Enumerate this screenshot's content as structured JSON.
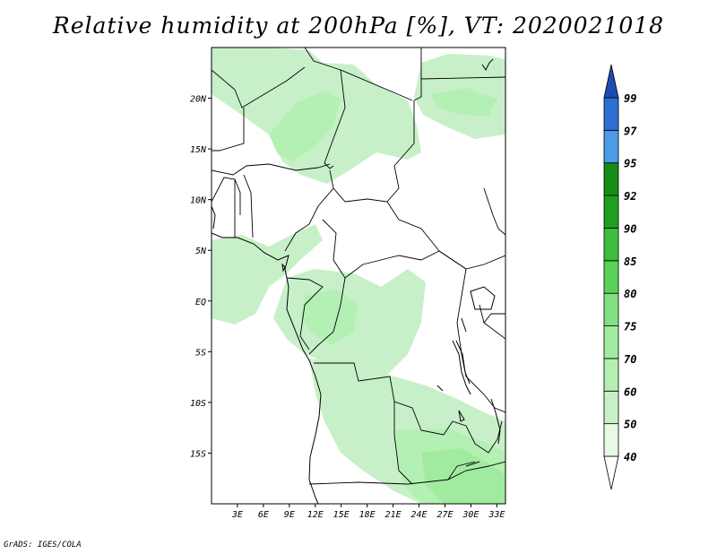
{
  "title": "Relative humidity at 200hPa [%], VT: 2020021018",
  "credit": "GrADS: IGES/COLA",
  "map": {
    "lon_range": [
      0,
      34
    ],
    "lat_range": [
      -20,
      25
    ],
    "lat_ticks": [
      {
        "value": 20,
        "label": "20N"
      },
      {
        "value": 15,
        "label": "15N"
      },
      {
        "value": 10,
        "label": "10N"
      },
      {
        "value": 5,
        "label": "5N"
      },
      {
        "value": 0,
        "label": "EQ"
      },
      {
        "value": -5,
        "label": "5S"
      },
      {
        "value": -10,
        "label": "10S"
      },
      {
        "value": -15,
        "label": "15S"
      }
    ],
    "lon_ticks": [
      {
        "value": 3,
        "label": "3E"
      },
      {
        "value": 6,
        "label": "6E"
      },
      {
        "value": 9,
        "label": "9E"
      },
      {
        "value": 12,
        "label": "12E"
      },
      {
        "value": 15,
        "label": "15E"
      },
      {
        "value": 18,
        "label": "18E"
      },
      {
        "value": 21,
        "label": "21E"
      },
      {
        "value": 24,
        "label": "24E"
      },
      {
        "value": 27,
        "label": "27E"
      },
      {
        "value": 30,
        "label": "30E"
      },
      {
        "value": 33,
        "label": "33E"
      }
    ]
  },
  "colorbar": {
    "levels": [
      "40",
      "50",
      "60",
      "70",
      "75",
      "80",
      "85",
      "90",
      "92",
      "95",
      "97",
      "99"
    ],
    "colors": [
      "#ffffff",
      "#e6fae6",
      "#c8f0c8",
      "#b4f0b4",
      "#a0eba0",
      "#82e182",
      "#5ad25a",
      "#3cbe3c",
      "#1ea01e",
      "#168c16",
      "#4b9be6",
      "#2d6ed2",
      "#1e4bb4"
    ]
  },
  "colors": {
    "humidity_60_70": "#c8f0c8",
    "humidity_70_75": "#b4f0b4",
    "humidity_75_80": "#a0eba0",
    "boundary": "#000000"
  }
}
